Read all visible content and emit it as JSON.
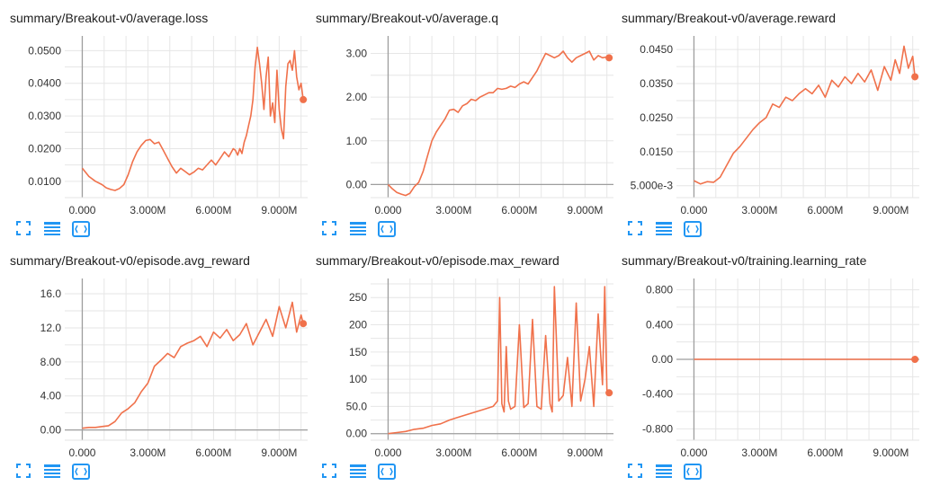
{
  "colors": {
    "series": "#f0714b",
    "grid": "#e6e6e6",
    "axis": "#9e9e9e",
    "icon": "#2196f3"
  },
  "toolbar": {
    "icons": [
      "fullscreen-icon",
      "data-table-icon",
      "fit-domain-icon"
    ]
  },
  "panels": [
    {
      "title": "summary/Breakout-v0/average.loss",
      "chart_data": {
        "type": "line",
        "x_tick_labels": [
          "0.000",
          "3.000M",
          "6.000M",
          "9.000M"
        ],
        "x_ticks": [
          0,
          3000000,
          6000000,
          9000000
        ],
        "xlim": [
          -800000,
          10300000
        ],
        "y_tick_labels": [
          "0.0100",
          "0.0200",
          "0.0300",
          "0.0400",
          "0.0500"
        ],
        "y_ticks": [
          0.01,
          0.02,
          0.03,
          0.04,
          0.05
        ],
        "ylim": [
          0.005,
          0.0545
        ],
        "series": [
          {
            "x": [
              0,
              300000,
              600000,
              900000,
              1100000,
              1300000,
              1500000,
              1700000,
              1900000,
              2100000,
              2300000,
              2500000,
              2700000,
              2900000,
              3100000,
              3300000,
              3500000,
              3700000,
              3900000,
              4100000,
              4300000,
              4500000,
              4700000,
              4900000,
              5100000,
              5300000,
              5500000,
              5700000,
              5900000,
              6100000,
              6300000,
              6500000,
              6700000,
              6900000,
              7000000,
              7100000,
              7200000,
              7300000,
              7400000,
              7500000,
              7600000,
              7700000,
              7800000,
              7900000,
              8000000,
              8100000,
              8200000,
              8300000,
              8400000,
              8500000,
              8600000,
              8700000,
              8800000,
              8900000,
              9000000,
              9100000,
              9200000,
              9300000,
              9400000,
              9500000,
              9600000,
              9700000,
              9800000,
              9900000,
              10000000,
              10100000
            ],
            "y": [
              0.014,
              0.0115,
              0.01,
              0.009,
              0.008,
              0.0075,
              0.0072,
              0.0078,
              0.009,
              0.012,
              0.016,
              0.019,
              0.021,
              0.0225,
              0.0228,
              0.0215,
              0.022,
              0.0195,
              0.017,
              0.0145,
              0.0125,
              0.014,
              0.013,
              0.012,
              0.0128,
              0.014,
              0.0135,
              0.015,
              0.0165,
              0.015,
              0.017,
              0.019,
              0.0175,
              0.02,
              0.0195,
              0.018,
              0.02,
              0.0185,
              0.022,
              0.024,
              0.027,
              0.03,
              0.035,
              0.045,
              0.051,
              0.046,
              0.04,
              0.032,
              0.042,
              0.048,
              0.03,
              0.034,
              0.028,
              0.044,
              0.032,
              0.026,
              0.023,
              0.039,
              0.046,
              0.047,
              0.044,
              0.05,
              0.042,
              0.038,
              0.04,
              0.035
            ],
            "end_marker": true
          }
        ]
      }
    },
    {
      "title": "summary/Breakout-v0/average.q",
      "chart_data": {
        "type": "line",
        "x_tick_labels": [
          "0.000",
          "3.000M",
          "6.000M",
          "9.000M"
        ],
        "x_ticks": [
          0,
          3000000,
          6000000,
          9000000
        ],
        "xlim": [
          -800000,
          10300000
        ],
        "y_tick_labels": [
          "0.00",
          "1.00",
          "2.00",
          "3.00"
        ],
        "y_ticks": [
          0,
          1,
          2,
          3
        ],
        "ylim": [
          -0.3,
          3.4
        ],
        "series": [
          {
            "x": [
              0,
              200000,
              400000,
              600000,
              800000,
              1000000,
              1200000,
              1400000,
              1600000,
              1800000,
              2000000,
              2200000,
              2400000,
              2600000,
              2800000,
              3000000,
              3200000,
              3400000,
              3600000,
              3800000,
              4000000,
              4200000,
              4400000,
              4600000,
              4800000,
              5000000,
              5200000,
              5400000,
              5600000,
              5800000,
              6000000,
              6200000,
              6400000,
              6600000,
              6800000,
              7000000,
              7200000,
              7400000,
              7600000,
              7800000,
              8000000,
              8200000,
              8400000,
              8600000,
              8800000,
              9000000,
              9200000,
              9400000,
              9600000,
              9800000,
              10000000,
              10100000
            ],
            "y": [
              0.0,
              -0.1,
              -0.18,
              -0.22,
              -0.25,
              -0.2,
              -0.05,
              0.05,
              0.3,
              0.65,
              1.0,
              1.2,
              1.35,
              1.5,
              1.7,
              1.72,
              1.65,
              1.8,
              1.85,
              1.95,
              1.92,
              2.0,
              2.05,
              2.1,
              2.1,
              2.2,
              2.18,
              2.2,
              2.25,
              2.22,
              2.3,
              2.35,
              2.3,
              2.45,
              2.6,
              2.8,
              3.0,
              2.95,
              2.9,
              2.95,
              3.05,
              2.9,
              2.8,
              2.9,
              2.95,
              3.0,
              3.05,
              2.85,
              2.95,
              2.9,
              2.92,
              2.9
            ],
            "end_marker": true
          }
        ]
      }
    },
    {
      "title": "summary/Breakout-v0/average.reward",
      "chart_data": {
        "type": "line",
        "x_tick_labels": [
          "0.000",
          "3.000M",
          "6.000M",
          "9.000M"
        ],
        "x_ticks": [
          0,
          3000000,
          6000000,
          9000000
        ],
        "xlim": [
          -800000,
          10300000
        ],
        "y_tick_labels": [
          "5.000e-3",
          "0.0150",
          "0.0250",
          "0.0350",
          "0.0450"
        ],
        "y_ticks": [
          0.005,
          0.015,
          0.025,
          0.035,
          0.045
        ],
        "ylim": [
          0.0015,
          0.049
        ],
        "series": [
          {
            "x": [
              0,
              300000,
              600000,
              900000,
              1200000,
              1500000,
              1800000,
              2100000,
              2400000,
              2700000,
              3000000,
              3300000,
              3600000,
              3900000,
              4200000,
              4500000,
              4800000,
              5100000,
              5400000,
              5700000,
              6000000,
              6300000,
              6600000,
              6900000,
              7200000,
              7500000,
              7800000,
              8100000,
              8400000,
              8700000,
              9000000,
              9200000,
              9400000,
              9600000,
              9800000,
              10000000,
              10100000
            ],
            "y": [
              0.0065,
              0.0055,
              0.0062,
              0.006,
              0.0075,
              0.011,
              0.0145,
              0.0165,
              0.019,
              0.0215,
              0.0235,
              0.025,
              0.029,
              0.028,
              0.031,
              0.03,
              0.032,
              0.0335,
              0.032,
              0.0345,
              0.031,
              0.036,
              0.034,
              0.037,
              0.035,
              0.038,
              0.0355,
              0.039,
              0.033,
              0.04,
              0.036,
              0.042,
              0.038,
              0.046,
              0.0395,
              0.043,
              0.037
            ],
            "end_marker": true
          }
        ]
      }
    },
    {
      "title": "summary/Breakout-v0/episode.avg_reward",
      "chart_data": {
        "type": "line",
        "x_tick_labels": [
          "0.000",
          "3.000M",
          "6.000M",
          "9.000M"
        ],
        "x_ticks": [
          0,
          3000000,
          6000000,
          9000000
        ],
        "xlim": [
          -800000,
          10300000
        ],
        "y_tick_labels": [
          "0.00",
          "4.00",
          "8.00",
          "12.0",
          "16.0"
        ],
        "y_ticks": [
          0,
          4,
          8,
          12,
          16
        ],
        "ylim": [
          -1.2,
          17.8
        ],
        "series": [
          {
            "x": [
              0,
              300000,
              600000,
              900000,
              1200000,
              1500000,
              1800000,
              2100000,
              2400000,
              2700000,
              3000000,
              3300000,
              3600000,
              3900000,
              4200000,
              4500000,
              4800000,
              5100000,
              5400000,
              5700000,
              6000000,
              6300000,
              6600000,
              6900000,
              7200000,
              7500000,
              7800000,
              8100000,
              8400000,
              8700000,
              9000000,
              9300000,
              9600000,
              9800000,
              10000000,
              10100000
            ],
            "y": [
              0.2,
              0.3,
              0.3,
              0.4,
              0.5,
              1.0,
              2.0,
              2.5,
              3.2,
              4.5,
              5.5,
              7.5,
              8.2,
              9.0,
              8.5,
              9.8,
              10.2,
              10.5,
              11.0,
              9.8,
              11.5,
              10.8,
              11.8,
              10.5,
              11.2,
              12.5,
              10.0,
              11.5,
              13.0,
              11.0,
              14.5,
              12.0,
              15.0,
              11.5,
              13.5,
              12.5
            ],
            "end_marker": true
          }
        ]
      }
    },
    {
      "title": "summary/Breakout-v0/episode.max_reward",
      "chart_data": {
        "type": "line",
        "x_tick_labels": [
          "0.000",
          "3.000M",
          "6.000M",
          "9.000M"
        ],
        "x_ticks": [
          0,
          3000000,
          6000000,
          9000000
        ],
        "xlim": [
          -800000,
          10300000
        ],
        "y_tick_labels": [
          "0.00",
          "50.0",
          "100",
          "150",
          "200",
          "250"
        ],
        "y_ticks": [
          0,
          50,
          100,
          150,
          200,
          250
        ],
        "ylim": [
          -12,
          285
        ],
        "series": [
          {
            "x": [
              0,
              400000,
              800000,
              1200000,
              1600000,
              2000000,
              2400000,
              2800000,
              3200000,
              3600000,
              4000000,
              4400000,
              4800000,
              5000000,
              5100000,
              5200000,
              5300000,
              5400000,
              5500000,
              5600000,
              5800000,
              6000000,
              6200000,
              6400000,
              6600000,
              6800000,
              7000000,
              7200000,
              7400000,
              7500000,
              7600000,
              7800000,
              8000000,
              8200000,
              8400000,
              8600000,
              8800000,
              9000000,
              9200000,
              9400000,
              9600000,
              9800000,
              9900000,
              10000000,
              10100000
            ],
            "y": [
              0,
              2,
              4,
              8,
              10,
              15,
              18,
              25,
              30,
              35,
              40,
              45,
              50,
              60,
              250,
              55,
              40,
              160,
              60,
              45,
              50,
              200,
              48,
              55,
              210,
              50,
              45,
              180,
              55,
              40,
              270,
              60,
              70,
              140,
              50,
              240,
              60,
              100,
              160,
              50,
              220,
              90,
              270,
              80,
              75
            ],
            "end_marker": true
          }
        ]
      }
    },
    {
      "title": "summary/Breakout-v0/training.learning_rate",
      "chart_data": {
        "type": "line",
        "x_tick_labels": [
          "0.000",
          "3.000M",
          "6.000M",
          "9.000M"
        ],
        "x_ticks": [
          0,
          3000000,
          6000000,
          9000000
        ],
        "xlim": [
          -800000,
          10300000
        ],
        "y_tick_labels": [
          "-0.800",
          "-0.400",
          "0.00",
          "0.400",
          "0.800"
        ],
        "y_ticks": [
          -0.8,
          -0.4,
          0,
          0.4,
          0.8
        ],
        "ylim": [
          -0.93,
          0.93
        ],
        "series": [
          {
            "x": [
              0,
              10100000
            ],
            "y": [
              0,
              0
            ],
            "end_marker": true
          }
        ]
      }
    }
  ]
}
